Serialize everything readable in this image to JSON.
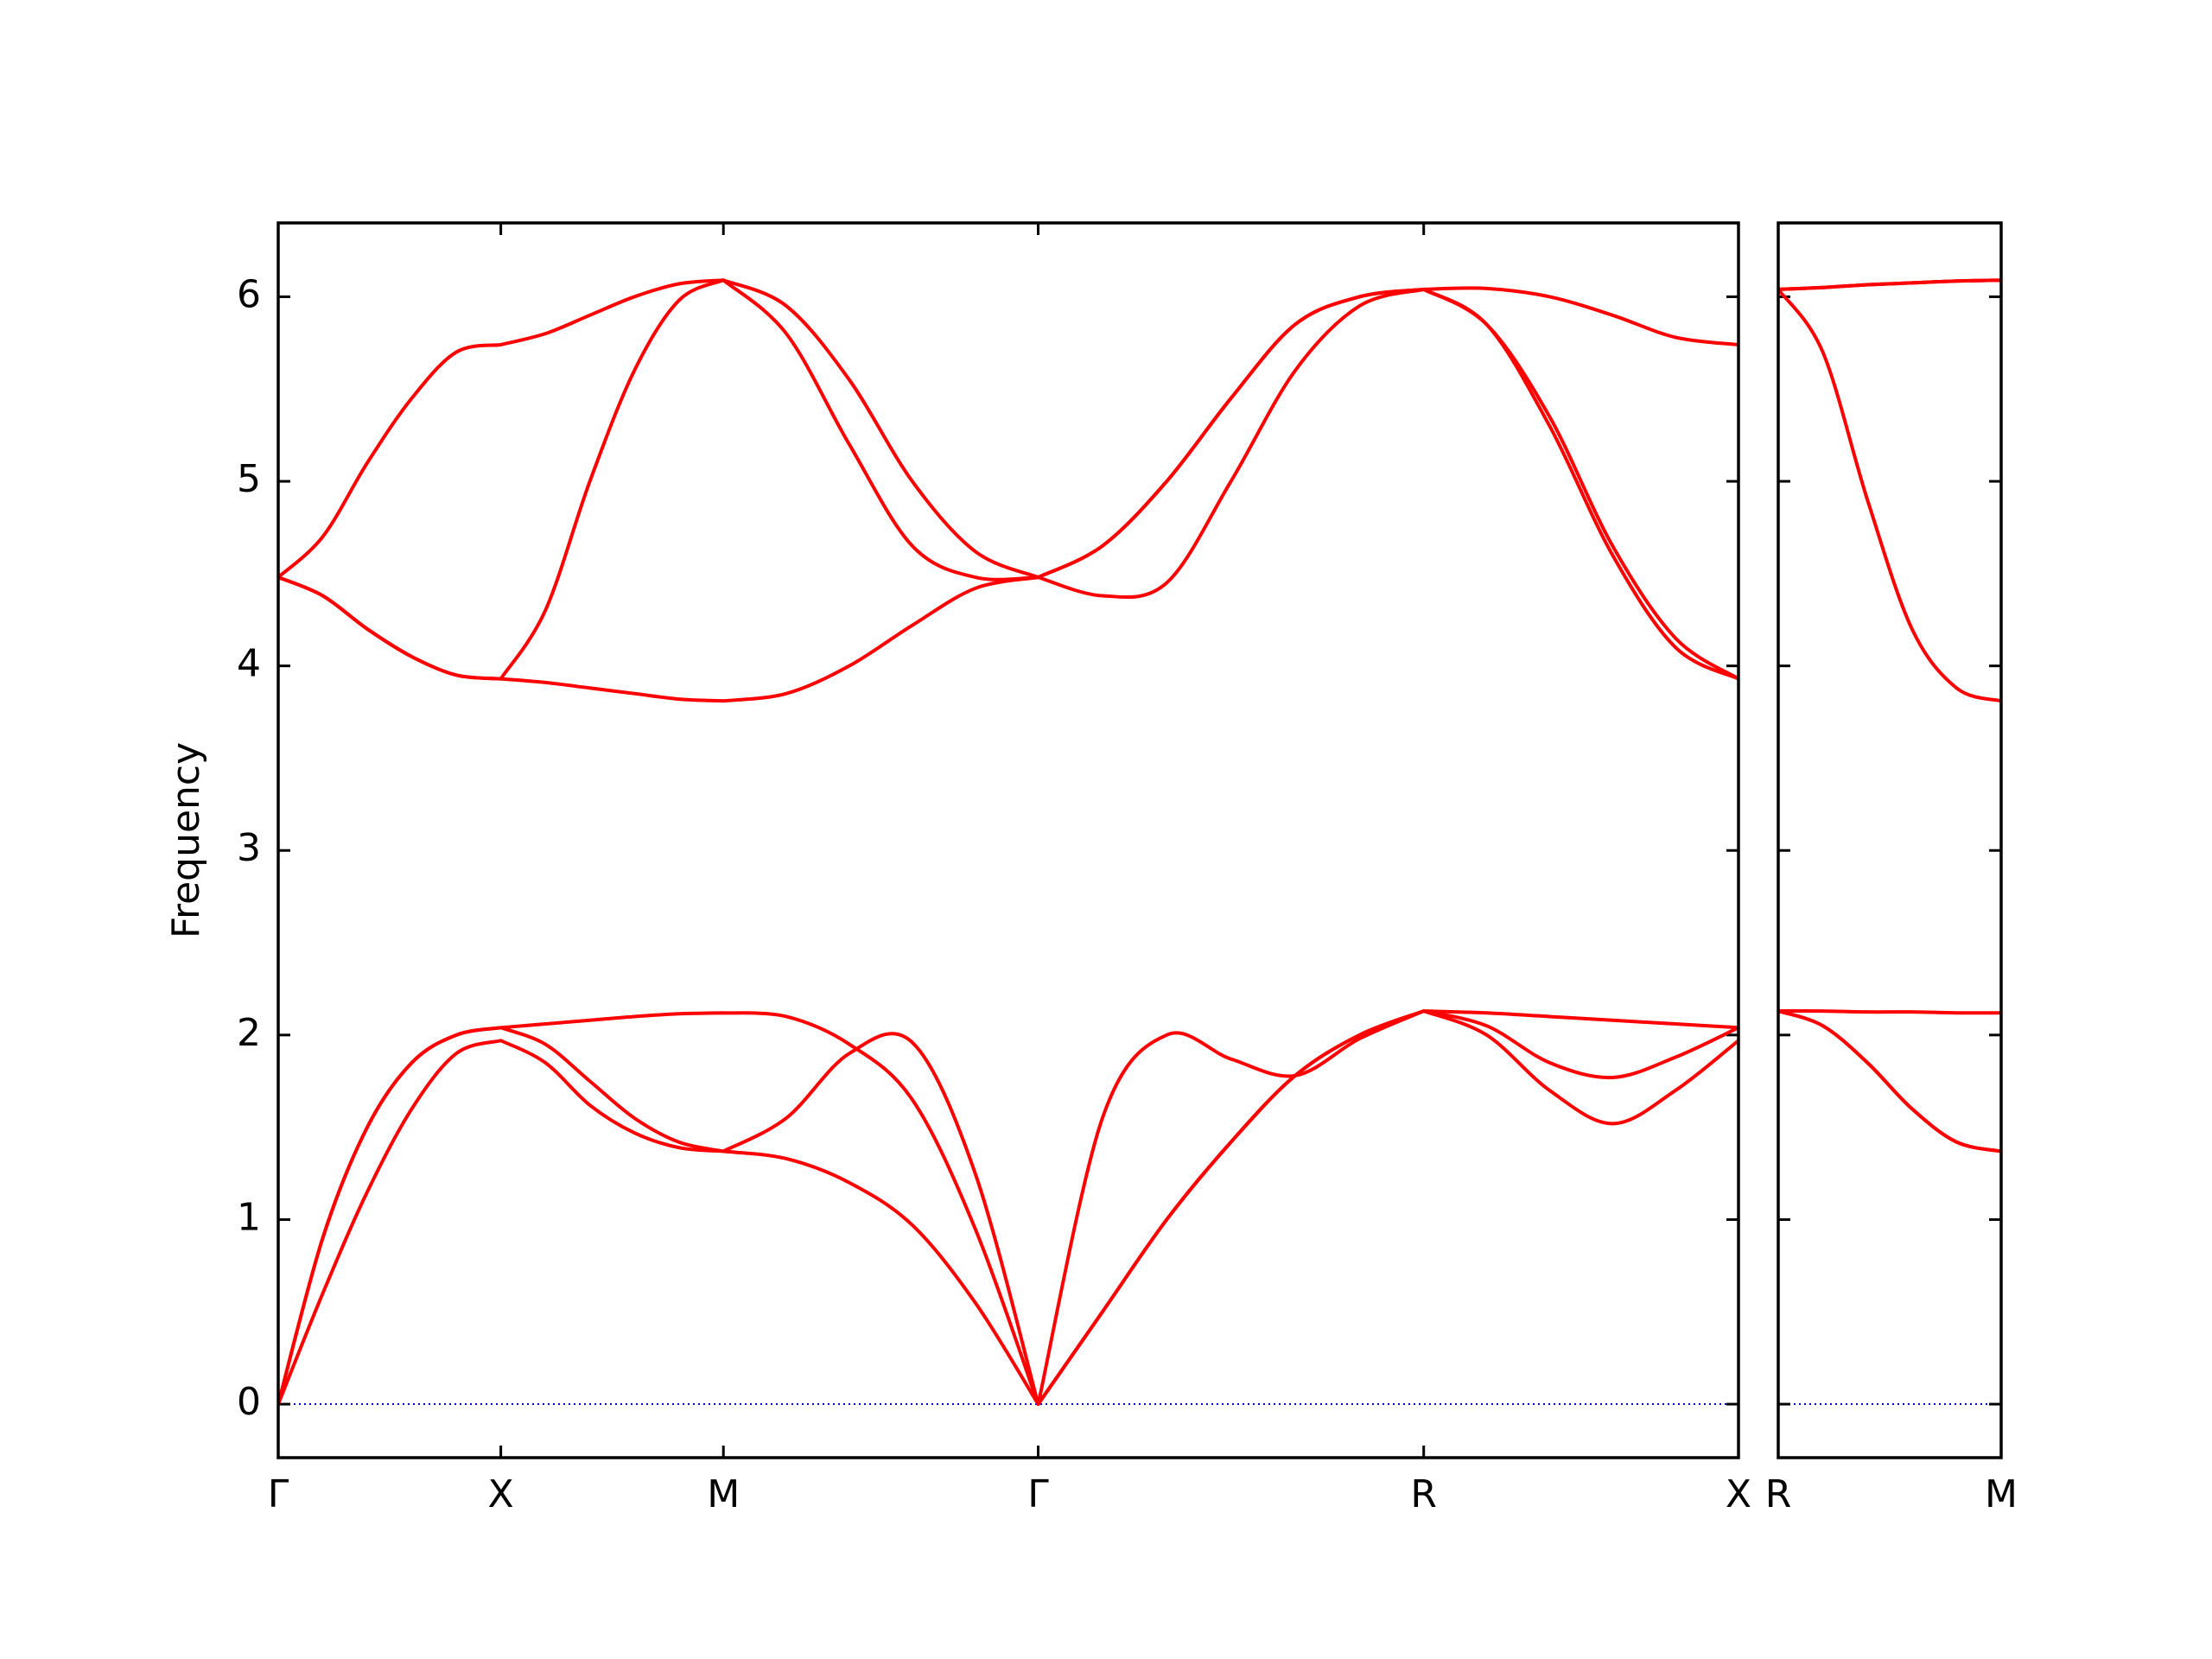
{
  "chart_data": [
    {
      "type": "line",
      "ylabel": "Frequency",
      "x": [
        0,
        0.1,
        0.2,
        0.3,
        0.4,
        0.5,
        0.6,
        0.7,
        0.8,
        0.9,
        1.0,
        1.1414,
        1.2828,
        1.4243,
        1.5657,
        1.7071,
        1.8514,
        1.9958,
        2.1401,
        2.2844,
        2.4288,
        2.5731,
        2.7145,
        2.8559,
        2.9974,
        3.1388,
        3.2802
      ],
      "series": [
        {
          "color": "#ff0000",
          "values": [
            0,
            0.6,
            1.15,
            1.6,
            1.9,
            1.97,
            1.85,
            1.62,
            1.47,
            1.39,
            1.37,
            1.33,
            1.2,
            0.97,
            0.55,
            0,
            0.5,
            1.0,
            1.42,
            1.78,
            2.0,
            2.13,
            2.0,
            1.7,
            1.52,
            1.7,
            1.97
          ]
        },
        {
          "color": "#ff0000",
          "values": [
            0,
            0.9,
            1.5,
            1.85,
            2.0,
            2.04,
            1.95,
            1.75,
            1.55,
            1.42,
            1.37,
            1.55,
            1.9,
            1.96,
            1.25,
            0,
            0.5,
            1.0,
            1.42,
            1.78,
            2.0,
            2.13,
            2.05,
            1.85,
            1.77,
            1.88,
            2.04
          ]
        },
        {
          "color": "#ff0000",
          "values": [
            0,
            0.9,
            1.5,
            1.85,
            2.0,
            2.04,
            2.06,
            2.08,
            2.1,
            2.115,
            2.12,
            2.1,
            1.95,
            1.65,
            0.95,
            0,
            1.55,
            2.0,
            1.87,
            1.78,
            1.98,
            2.13,
            2.12,
            2.1,
            2.08,
            2.06,
            2.04
          ]
        },
        {
          "color": "#ff0000",
          "values": [
            4.48,
            4.38,
            4.2,
            4.05,
            3.95,
            3.93,
            3.91,
            3.88,
            3.85,
            3.82,
            3.81,
            3.85,
            4.0,
            4.22,
            4.42,
            4.48,
            4.38,
            4.45,
            5.0,
            5.6,
            5.95,
            6.04,
            5.85,
            5.3,
            4.6,
            4.1,
            3.93
          ]
        },
        {
          "color": "#ff0000",
          "values": [
            4.48,
            4.38,
            4.2,
            4.05,
            3.95,
            3.93,
            4.3,
            5.0,
            5.6,
            5.98,
            6.09,
            5.8,
            5.2,
            4.65,
            4.48,
            4.48,
            4.65,
            5.0,
            5.45,
            5.85,
            6.0,
            6.04,
            5.85,
            5.35,
            4.65,
            4.15,
            3.93
          ]
        },
        {
          "color": "#ff0000",
          "values": [
            4.48,
            4.7,
            5.1,
            5.45,
            5.7,
            5.74,
            5.8,
            5.9,
            6.0,
            6.07,
            6.09,
            5.95,
            5.55,
            5.0,
            4.62,
            4.48,
            4.65,
            5.0,
            5.45,
            5.85,
            6.0,
            6.04,
            6.045,
            6.0,
            5.9,
            5.78,
            5.74
          ]
        }
      ],
      "xlim": [
        0,
        3.2802
      ],
      "xticks": [
        {
          "value": 0,
          "label": "Γ"
        },
        {
          "value": 0.5,
          "label": "X"
        },
        {
          "value": 1.0,
          "label": "M"
        },
        {
          "value": 1.7071,
          "label": "Γ"
        },
        {
          "value": 2.5731,
          "label": "R"
        },
        {
          "value": 3.2802,
          "label": "X"
        }
      ],
      "ylim": [
        -0.29,
        6.4
      ],
      "yticks": [
        0,
        1,
        2,
        3,
        4,
        5,
        6
      ],
      "show_ytick_labels": true,
      "zero_line": {
        "y": 0,
        "color": "#0000cc"
      }
    },
    {
      "type": "line",
      "x": [
        0,
        0.1,
        0.2,
        0.3,
        0.4,
        0.5
      ],
      "series": [
        {
          "color": "#ff0000",
          "values": [
            2.13,
            2.05,
            1.85,
            1.6,
            1.42,
            1.37
          ]
        },
        {
          "color": "#ff0000",
          "values": [
            2.13,
            2.05,
            1.85,
            1.6,
            1.42,
            1.37
          ]
        },
        {
          "color": "#ff0000",
          "values": [
            2.13,
            2.13,
            2.125,
            2.125,
            2.12,
            2.12
          ]
        },
        {
          "color": "#ff0000",
          "values": [
            6.04,
            5.7,
            4.9,
            4.2,
            3.88,
            3.81
          ]
        },
        {
          "color": "#ff0000",
          "values": [
            6.04,
            6.05,
            6.065,
            6.075,
            6.085,
            6.09
          ]
        },
        {
          "color": "#ff0000",
          "values": [
            6.04,
            6.05,
            6.065,
            6.075,
            6.085,
            6.09
          ]
        }
      ],
      "xlim": [
        0,
        0.5
      ],
      "xticks": [
        {
          "value": 0,
          "label": "R"
        },
        {
          "value": 0.5,
          "label": "M"
        }
      ],
      "ylim": [
        -0.29,
        6.4
      ],
      "yticks": [
        0,
        1,
        2,
        3,
        4,
        5,
        6
      ],
      "show_ytick_labels": false,
      "zero_line": {
        "y": 0,
        "color": "#0000cc"
      }
    }
  ]
}
